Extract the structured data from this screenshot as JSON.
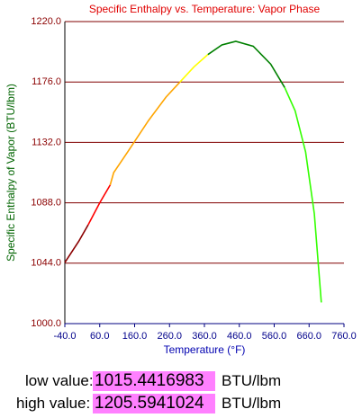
{
  "chart_data": {
    "type": "line",
    "title": "Specific Enthalpy vs. Temperature: Vapor Phase",
    "x_label": "Temperature (°F)",
    "y_label": "Specific Enthalpy of Vapor (BTU/lbm)",
    "xlim": [
      -40,
      760
    ],
    "ylim": [
      1000,
      1220
    ],
    "xticks": [
      {
        "value": -40,
        "label": "-40.0"
      },
      {
        "value": 60,
        "label": "60.0"
      },
      {
        "value": 160,
        "label": "160.0"
      },
      {
        "value": 260,
        "label": "260.0"
      },
      {
        "value": 360,
        "label": "360.0"
      },
      {
        "value": 460,
        "label": "460.0"
      },
      {
        "value": 560,
        "label": "560.0"
      },
      {
        "value": 660,
        "label": "660.0"
      },
      {
        "value": 760,
        "label": "760.0"
      }
    ],
    "yticks": [
      {
        "value": 1000,
        "label": "1000.0"
      },
      {
        "value": 1044,
        "label": "1044.0"
      },
      {
        "value": 1088,
        "label": "1088.0"
      },
      {
        "value": 1132,
        "label": "1132.0"
      },
      {
        "value": 1176,
        "label": "1176.0"
      },
      {
        "value": 1220,
        "label": "1220.0"
      }
    ],
    "grid": true,
    "series": [
      {
        "color": "#8b0000",
        "x": [
          -40,
          0,
          27
        ],
        "values": [
          1044.5,
          1060,
          1072
        ]
      },
      {
        "color": "#ff0000",
        "x": [
          27,
          60,
          90
        ],
        "values": [
          1072,
          1088,
          1101
        ]
      },
      {
        "color": "#ffa500",
        "x": [
          90,
          100,
          140,
          200,
          250,
          290
        ],
        "values": [
          1101,
          1110,
          1125,
          1148,
          1165,
          1176
        ]
      },
      {
        "color": "#ffff00",
        "x": [
          290,
          330,
          370
        ],
        "values": [
          1176,
          1187,
          1196
        ]
      },
      {
        "color": "#008000",
        "x": [
          370,
          410,
          450,
          500,
          550,
          590
        ],
        "values": [
          1196,
          1203,
          1205.6,
          1202,
          1189,
          1172
        ]
      },
      {
        "color": "#33ff00",
        "x": [
          590,
          620,
          650,
          675,
          695
        ],
        "values": [
          1172,
          1155,
          1125,
          1080,
          1015.4
        ]
      }
    ]
  },
  "readout": {
    "low_label": "low value:",
    "low_value": 1015.4416983,
    "low_unit": "BTU/lbm",
    "high_label": "high value:",
    "high_value": 1205.5941024,
    "high_unit": "BTU/lbm"
  }
}
